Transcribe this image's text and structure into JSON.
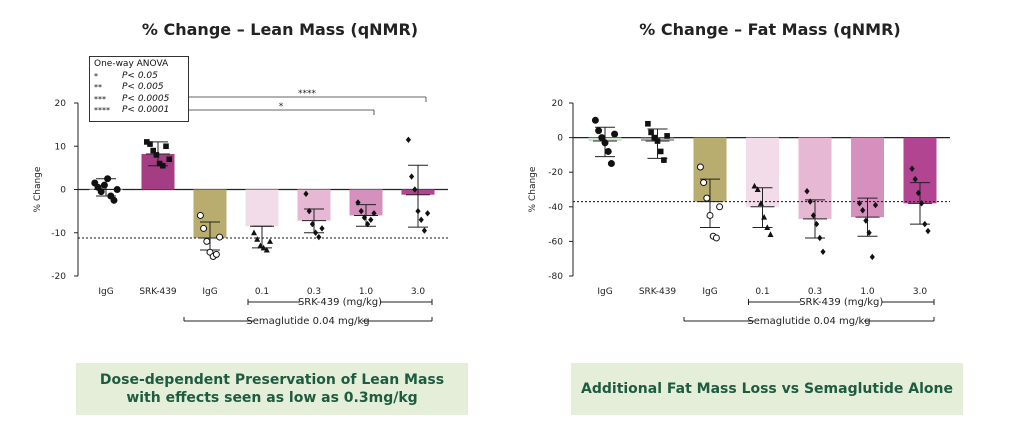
{
  "left_title": "% Change – Lean Mass (qNMR)",
  "right_title": "% Change – Fat Mass (qNMR)",
  "left_caption_line1": "Dose-dependent Preservation of Lean Mass",
  "left_caption_line2": "with effects seen as low as 0.3mg/kg",
  "right_caption": "Additional Fat Mass Loss vs Semaglutide Alone",
  "legend": {
    "title": "One-way ANOVA",
    "rows": [
      {
        "stars": "*",
        "text": "P< 0.05"
      },
      {
        "stars": "**",
        "text": "P< 0.005"
      },
      {
        "stars": "***",
        "text": "P< 0.0005"
      },
      {
        "stars": "****",
        "text": "P< 0.0001"
      }
    ]
  },
  "chart_data": [
    {
      "type": "bar",
      "title": "% Change – Lean Mass (qNMR)",
      "ylabel": "% Change",
      "xlabel": "",
      "ylim": [
        -20,
        20
      ],
      "yticks": [
        -20,
        -10,
        0,
        10,
        20
      ],
      "categories": [
        "IgG",
        "SRK-439",
        "IgG",
        "0.1",
        "0.3",
        "1.0",
        "3.0"
      ],
      "values": [
        0,
        8.2,
        -11.2,
        -8.5,
        -7.2,
        -6,
        -1.2
      ],
      "error": [
        [
          -1.5,
          2.5
        ],
        [
          5.5,
          11
        ],
        [
          -14,
          -7.5
        ],
        [
          -13.5,
          -8.5
        ],
        [
          -10,
          -4.5
        ],
        [
          -8.5,
          -3.5
        ],
        [
          -8.7,
          5.6
        ]
      ],
      "colors": [
        "#ffffff",
        "#a53d84",
        "#b8ad6e",
        "#f2dcea",
        "#e6b8d3",
        "#d690be",
        "#b24591"
      ],
      "points": [
        [
          1.5,
          0.5,
          -0.5,
          1,
          2.5,
          -1.5,
          -2.5,
          0
        ],
        [
          11,
          10.5,
          9,
          8,
          6,
          5.5,
          10,
          7
        ],
        [
          -6,
          -9,
          -12,
          -14.5,
          -15.5,
          -15,
          -11
        ],
        [
          -10,
          -11.5,
          -13,
          -13.5,
          -14,
          -12
        ],
        [
          -1,
          -5,
          -8,
          -10,
          -11,
          -9
        ],
        [
          -3,
          -5,
          -6.5,
          -8,
          -7,
          -5.5
        ],
        [
          11.5,
          3,
          0,
          -5,
          -7,
          -9.5,
          -5.5
        ]
      ],
      "reference_line": -11.2,
      "group_labels": {
        "dose": "SRK-439 (mg/kg)",
        "background": "Semaglutide 0.04 mg/kg"
      },
      "significance": [
        "****",
        "*"
      ]
    },
    {
      "type": "bar",
      "title": "% Change – Fat Mass (qNMR)",
      "ylabel": "% Change",
      "xlabel": "",
      "ylim": [
        -80,
        20
      ],
      "yticks": [
        -80,
        -60,
        -40,
        -20,
        0,
        20
      ],
      "categories": [
        "IgG",
        "SRK-439",
        "IgG",
        "0.1",
        "0.3",
        "1.0",
        "3.0"
      ],
      "values": [
        -2,
        -2,
        -37,
        -40,
        -47,
        -46,
        -38
      ],
      "error": [
        [
          -11,
          6
        ],
        [
          -12,
          5
        ],
        [
          -52,
          -24
        ],
        [
          -52,
          -29
        ],
        [
          -58,
          -36
        ],
        [
          -57,
          -35
        ],
        [
          -50,
          -26
        ]
      ],
      "colors": [
        "#cfe3cf",
        "#a8a8a8",
        "#b8ad6e",
        "#f2dcea",
        "#e6b8d3",
        "#d690be",
        "#b24591"
      ],
      "points": [
        [
          10,
          4,
          0,
          -3,
          -8,
          -15,
          2
        ],
        [
          8,
          3,
          0,
          -2,
          -8,
          -13,
          1
        ],
        [
          -17,
          -26,
          -35,
          -45,
          -57,
          -58,
          -40
        ],
        [
          -28,
          -30,
          -38,
          -46,
          -52,
          -56
        ],
        [
          -31,
          -37,
          -45,
          -50,
          -58,
          -66
        ],
        [
          -38,
          -42,
          -48,
          -55,
          -69,
          -39
        ],
        [
          -18,
          -24,
          -32,
          -38,
          -50,
          -54
        ]
      ],
      "reference_line": -37,
      "group_labels": {
        "dose": "SRK-439 (mg/kg)",
        "background": "Semaglutide 0.04 mg/kg"
      }
    }
  ]
}
